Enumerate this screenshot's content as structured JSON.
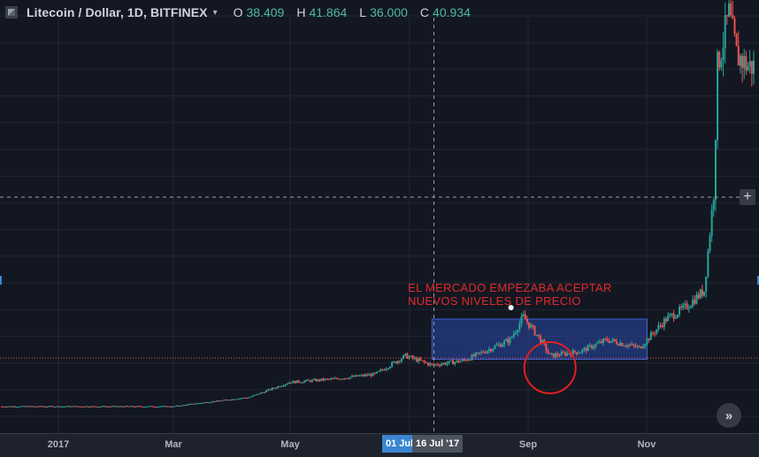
{
  "header": {
    "title": "Litecoin / Dollar, 1D, BITFINEX",
    "caret": "▾",
    "ohlc": [
      {
        "key": "O",
        "value": "38.409"
      },
      {
        "key": "H",
        "value": "41.864"
      },
      {
        "key": "L",
        "value": "36.000"
      },
      {
        "key": "C",
        "value": "40.934"
      }
    ]
  },
  "annotation": {
    "line1": "EL MERCADO EMPEZABA ACEPTAR",
    "line2": "NUEVOS NIVELES DE PRECIO"
  },
  "x_axis": {
    "labels": [
      "2017",
      "Mar",
      "May",
      "Sep",
      "Nov"
    ],
    "highlight_left": "01 Jul",
    "highlight_right": "16 Jul '17"
  },
  "scroll_button": {
    "glyph": "»"
  },
  "crosshair": {
    "glyph": "+"
  },
  "colors": {
    "background": "#131722",
    "up": "#26a69a",
    "down": "#ef5350",
    "box": "#2a48a8",
    "annotation": "#e02a2a",
    "highlight": "#3b86d1"
  },
  "chart_data": {
    "type": "candlestick",
    "symbol": "Litecoin / Dollar",
    "interval": "1D",
    "exchange": "BITFINEX",
    "x_range": [
      "2016-12-01",
      "2017-12-31"
    ],
    "y_range": [
      0,
      380
    ],
    "grid": true,
    "key_points": [
      {
        "date": "2016-12-01",
        "close": 4
      },
      {
        "date": "2017-03-01",
        "close": 4
      },
      {
        "date": "2017-03-15",
        "close": 7
      },
      {
        "date": "2017-04-10",
        "close": 12
      },
      {
        "date": "2017-05-01",
        "close": 25
      },
      {
        "date": "2017-05-25",
        "close": 28
      },
      {
        "date": "2017-06-15",
        "close": 32
      },
      {
        "date": "2017-07-01",
        "close": 48
      },
      {
        "date": "2017-07-15",
        "close": 40
      },
      {
        "date": "2017-08-01",
        "close": 44
      },
      {
        "date": "2017-08-25",
        "close": 62
      },
      {
        "date": "2017-09-01",
        "close": 82
      },
      {
        "date": "2017-09-10",
        "close": 62
      },
      {
        "date": "2017-09-15",
        "close": 48
      },
      {
        "date": "2017-10-01",
        "close": 52
      },
      {
        "date": "2017-10-15",
        "close": 62
      },
      {
        "date": "2017-11-01",
        "close": 55
      },
      {
        "date": "2017-11-15",
        "close": 80
      },
      {
        "date": "2017-11-25",
        "close": 90
      },
      {
        "date": "2017-12-05",
        "close": 105
      },
      {
        "date": "2017-12-10",
        "close": 190
      },
      {
        "date": "2017-12-12",
        "close": 300
      },
      {
        "date": "2017-12-18",
        "close": 345
      },
      {
        "date": "2017-12-22",
        "close": 310
      },
      {
        "date": "2017-12-28",
        "close": 300
      }
    ],
    "annotations": [
      {
        "type": "rectangle",
        "from": "2017-07-15",
        "to": "2017-11-05",
        "price_from": 45,
        "price_to": 80
      },
      {
        "type": "text",
        "text": "EL MERCADO EMPEZABA ACEPTAR NUEVOS NIVELES DE PRECIO"
      },
      {
        "type": "circle",
        "date": "2017-09-15",
        "price": 40
      }
    ]
  }
}
